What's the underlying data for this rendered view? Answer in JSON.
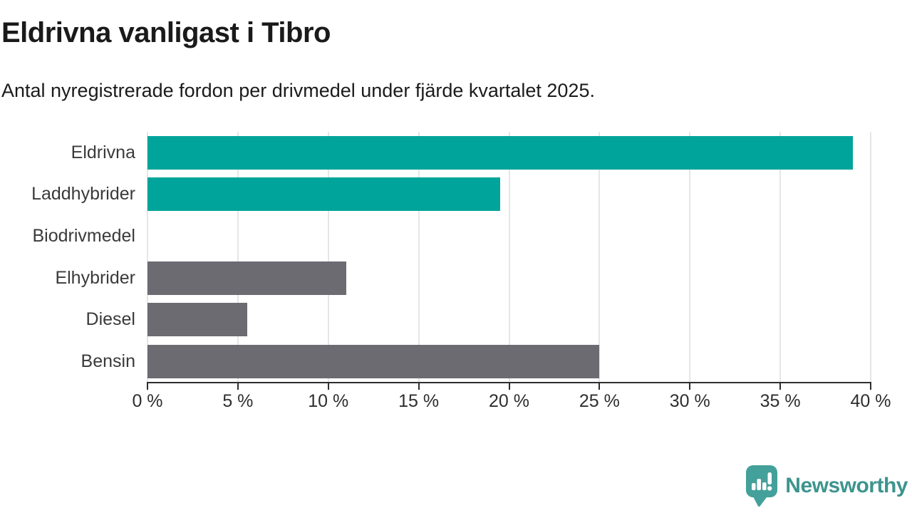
{
  "header": {
    "title": "Eldrivna vanligast i Tibro",
    "subtitle": "Antal nyregistrerade fordon per drivmedel under fjärde kvartalet 2025."
  },
  "chart_data": {
    "type": "bar",
    "orientation": "horizontal",
    "title": "Eldrivna vanligast i Tibro",
    "subtitle": "Antal nyregistrerade fordon per drivmedel under fjärde kvartalet 2025.",
    "categories": [
      "Eldrivna",
      "Laddhybrider",
      "Biodrivmedel",
      "Elhybrider",
      "Diesel",
      "Bensin"
    ],
    "values": [
      39,
      19.5,
      0,
      11,
      5.5,
      25
    ],
    "unit": "%",
    "xlim": [
      0,
      40
    ],
    "x_ticks": [
      0,
      5,
      10,
      15,
      20,
      25,
      30,
      35,
      40
    ],
    "x_tick_labels": [
      "0 %",
      "5 %",
      "10 %",
      "15 %",
      "20 %",
      "25 %",
      "30 %",
      "35 %",
      "40 %"
    ],
    "bar_colors": [
      "#00a49a",
      "#00a49a",
      "#6c6b72",
      "#6c6b72",
      "#6c6b72",
      "#6c6b72"
    ],
    "highlight_color": "#00a49a",
    "default_color": "#6c6b72",
    "grid": "vertical",
    "legend": "none"
  },
  "branding": {
    "logo_text": "Newsworthy",
    "logo_text_color": "#3e948e",
    "logo_icon": "speech-bubble-barchart-icon",
    "logo_icon_color": "#44a09a"
  }
}
